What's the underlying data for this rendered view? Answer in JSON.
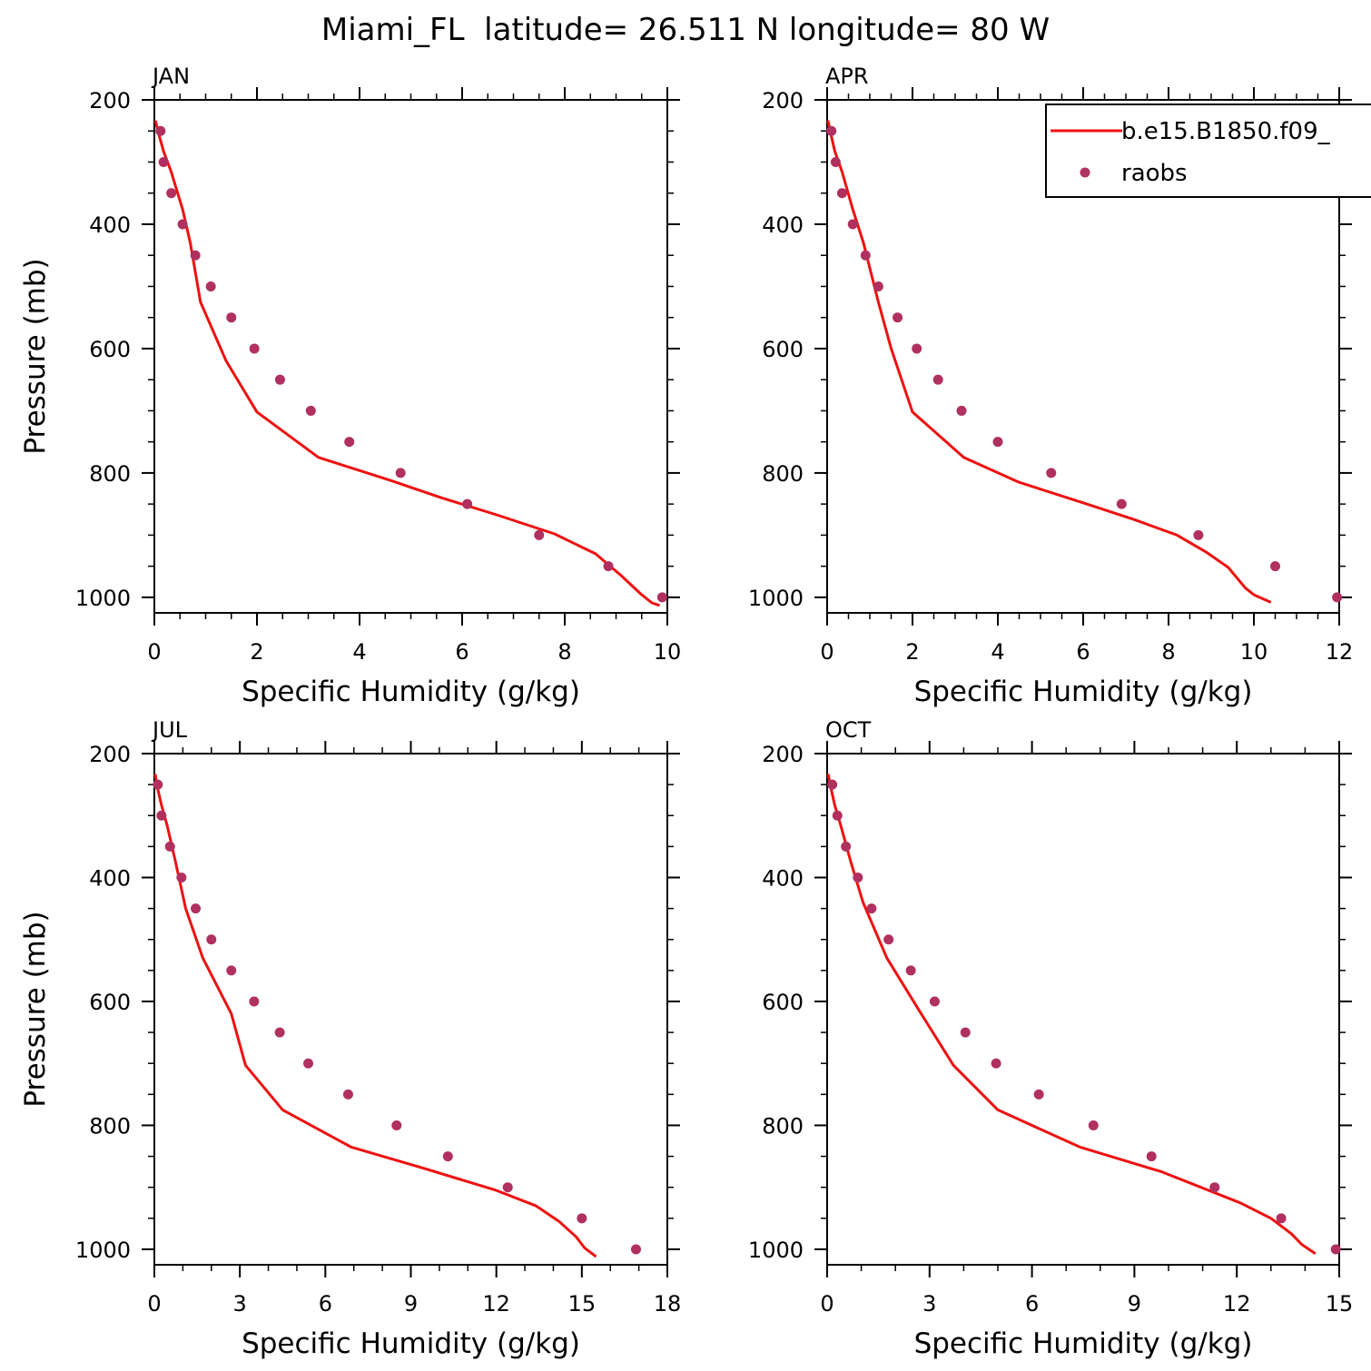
{
  "figure": {
    "title": "Miami_FL  latitude= 26.511 N longitude= 80 W"
  },
  "legend": {
    "entries": [
      {
        "label": "b.e15.B1850.f09_",
        "kind": "line",
        "color": "#ee1111"
      },
      {
        "label": "raobs",
        "kind": "marker",
        "color": "#b03060"
      }
    ]
  },
  "chart_data": [
    {
      "type": "line",
      "panel_title": "JAN",
      "xlabel": "Specific Humidity (g/kg)",
      "ylabel": "Pressure (mb)",
      "xlim": [
        0,
        10
      ],
      "ylim": [
        200,
        1025
      ],
      "y_inverted": true,
      "xticks": [
        0,
        2,
        4,
        6,
        8,
        10
      ],
      "yticks": [
        200,
        400,
        600,
        800,
        1000
      ],
      "series": [
        {
          "name": "b.e15.B1850.f09_",
          "kind": "line",
          "color": "#ee1111",
          "points": [
            [
              0.02,
              233
            ],
            [
              0.08,
              253
            ],
            [
              0.18,
              283
            ],
            [
              0.33,
              316
            ],
            [
              0.55,
              376
            ],
            [
              0.7,
              430
            ],
            [
              0.9,
              525
            ],
            [
              1.4,
              620
            ],
            [
              2.0,
              702
            ],
            [
              3.2,
              775
            ],
            [
              4.6,
              812
            ],
            [
              5.6,
              840
            ],
            [
              6.7,
              868
            ],
            [
              7.8,
              898
            ],
            [
              8.6,
              930
            ],
            [
              9.1,
              965
            ],
            [
              9.5,
              996
            ],
            [
              9.7,
              1009
            ],
            [
              9.85,
              1013
            ]
          ]
        },
        {
          "name": "raobs",
          "kind": "marker",
          "color": "#b03060",
          "points": [
            [
              0.12,
              250
            ],
            [
              0.18,
              300
            ],
            [
              0.33,
              350
            ],
            [
              0.55,
              400
            ],
            [
              0.8,
              450
            ],
            [
              1.1,
              500
            ],
            [
              1.5,
              550
            ],
            [
              1.95,
              600
            ],
            [
              2.45,
              650
            ],
            [
              3.05,
              700
            ],
            [
              3.8,
              750
            ],
            [
              4.8,
              800
            ],
            [
              6.1,
              850
            ],
            [
              7.5,
              900
            ],
            [
              8.85,
              950
            ],
            [
              9.9,
              1000
            ]
          ]
        }
      ]
    },
    {
      "type": "line",
      "panel_title": "APR",
      "xlabel": "Specific Humidity (g/kg)",
      "ylabel": "Pressure (mb)",
      "xlim": [
        0,
        12
      ],
      "ylim": [
        200,
        1025
      ],
      "y_inverted": true,
      "xticks": [
        0,
        2,
        4,
        6,
        8,
        10,
        12
      ],
      "yticks": [
        200,
        400,
        600,
        800,
        1000
      ],
      "series": [
        {
          "name": "b.e15.B1850.f09_",
          "kind": "line",
          "color": "#ee1111",
          "points": [
            [
              0.02,
              233
            ],
            [
              0.08,
              253
            ],
            [
              0.18,
              283
            ],
            [
              0.35,
              316
            ],
            [
              0.6,
              376
            ],
            [
              0.85,
              430
            ],
            [
              1.2,
              525
            ],
            [
              1.5,
              600
            ],
            [
              2.0,
              702
            ],
            [
              3.2,
              775
            ],
            [
              4.5,
              815
            ],
            [
              6.0,
              848
            ],
            [
              7.2,
              875
            ],
            [
              8.2,
              900
            ],
            [
              8.9,
              928
            ],
            [
              9.4,
              952
            ],
            [
              9.8,
              985
            ],
            [
              10.0,
              996
            ],
            [
              10.4,
              1008
            ]
          ]
        },
        {
          "name": "raobs",
          "kind": "marker",
          "color": "#b03060",
          "points": [
            [
              0.1,
              250
            ],
            [
              0.2,
              300
            ],
            [
              0.35,
              350
            ],
            [
              0.6,
              400
            ],
            [
              0.9,
              450
            ],
            [
              1.2,
              500
            ],
            [
              1.65,
              550
            ],
            [
              2.1,
              600
            ],
            [
              2.6,
              650
            ],
            [
              3.15,
              700
            ],
            [
              4.0,
              750
            ],
            [
              5.25,
              800
            ],
            [
              6.9,
              850
            ],
            [
              8.7,
              900
            ],
            [
              10.5,
              950
            ],
            [
              11.95,
              1000
            ]
          ]
        }
      ]
    },
    {
      "type": "line",
      "panel_title": "JUL",
      "xlabel": "Specific Humidity (g/kg)",
      "ylabel": "Pressure (mb)",
      "xlim": [
        0,
        18
      ],
      "ylim": [
        200,
        1025
      ],
      "y_inverted": true,
      "xticks": [
        0,
        3,
        6,
        9,
        12,
        15,
        18
      ],
      "yticks": [
        200,
        400,
        600,
        800,
        1000
      ],
      "series": [
        {
          "name": "b.e15.B1850.f09_",
          "kind": "line",
          "color": "#ee1111",
          "points": [
            [
              0.03,
              233
            ],
            [
              0.1,
              253
            ],
            [
              0.25,
              283
            ],
            [
              0.45,
              316
            ],
            [
              0.75,
              376
            ],
            [
              1.1,
              450
            ],
            [
              1.7,
              530
            ],
            [
              2.7,
              620
            ],
            [
              3.2,
              703
            ],
            [
              4.5,
              775
            ],
            [
              6.9,
              835
            ],
            [
              9.5,
              870
            ],
            [
              12.0,
              905
            ],
            [
              13.4,
              930
            ],
            [
              14.2,
              955
            ],
            [
              14.8,
              980
            ],
            [
              15.1,
              998
            ],
            [
              15.5,
              1012
            ]
          ]
        },
        {
          "name": "raobs",
          "kind": "marker",
          "color": "#b03060",
          "points": [
            [
              0.12,
              250
            ],
            [
              0.25,
              300
            ],
            [
              0.55,
              350
            ],
            [
              0.95,
              400
            ],
            [
              1.45,
              450
            ],
            [
              2.0,
              500
            ],
            [
              2.7,
              550
            ],
            [
              3.5,
              600
            ],
            [
              4.4,
              650
            ],
            [
              5.4,
              700
            ],
            [
              6.8,
              750
            ],
            [
              8.5,
              800
            ],
            [
              10.3,
              850
            ],
            [
              12.4,
              900
            ],
            [
              15.0,
              950
            ],
            [
              16.9,
              1000
            ]
          ]
        }
      ]
    },
    {
      "type": "line",
      "panel_title": "OCT",
      "xlabel": "Specific Humidity (g/kg)",
      "ylabel": "Pressure (mb)",
      "xlim": [
        0,
        15
      ],
      "ylim": [
        200,
        1025
      ],
      "y_inverted": true,
      "xticks": [
        0,
        3,
        6,
        9,
        12,
        15
      ],
      "yticks": [
        200,
        400,
        600,
        800,
        1000
      ],
      "series": [
        {
          "name": "b.e15.B1850.f09_",
          "kind": "line",
          "color": "#ee1111",
          "points": [
            [
              0.03,
              233
            ],
            [
              0.1,
              253
            ],
            [
              0.22,
              283
            ],
            [
              0.4,
              316
            ],
            [
              0.7,
              376
            ],
            [
              1.05,
              440
            ],
            [
              1.75,
              530
            ],
            [
              2.7,
              615
            ],
            [
              3.7,
              703
            ],
            [
              5.0,
              775
            ],
            [
              7.4,
              835
            ],
            [
              9.8,
              875
            ],
            [
              12.1,
              925
            ],
            [
              13.0,
              950
            ],
            [
              13.6,
              975
            ],
            [
              13.9,
              992
            ],
            [
              14.3,
              1007
            ]
          ]
        },
        {
          "name": "raobs",
          "kind": "marker",
          "color": "#b03060",
          "points": [
            [
              0.15,
              250
            ],
            [
              0.3,
              300
            ],
            [
              0.55,
              350
            ],
            [
              0.9,
              400
            ],
            [
              1.3,
              450
            ],
            [
              1.8,
              500
            ],
            [
              2.45,
              550
            ],
            [
              3.15,
              600
            ],
            [
              4.05,
              650
            ],
            [
              4.95,
              700
            ],
            [
              6.2,
              750
            ],
            [
              7.8,
              800
            ],
            [
              9.5,
              850
            ],
            [
              11.35,
              900
            ],
            [
              13.3,
              950
            ],
            [
              14.9,
              1000
            ]
          ]
        }
      ]
    }
  ]
}
